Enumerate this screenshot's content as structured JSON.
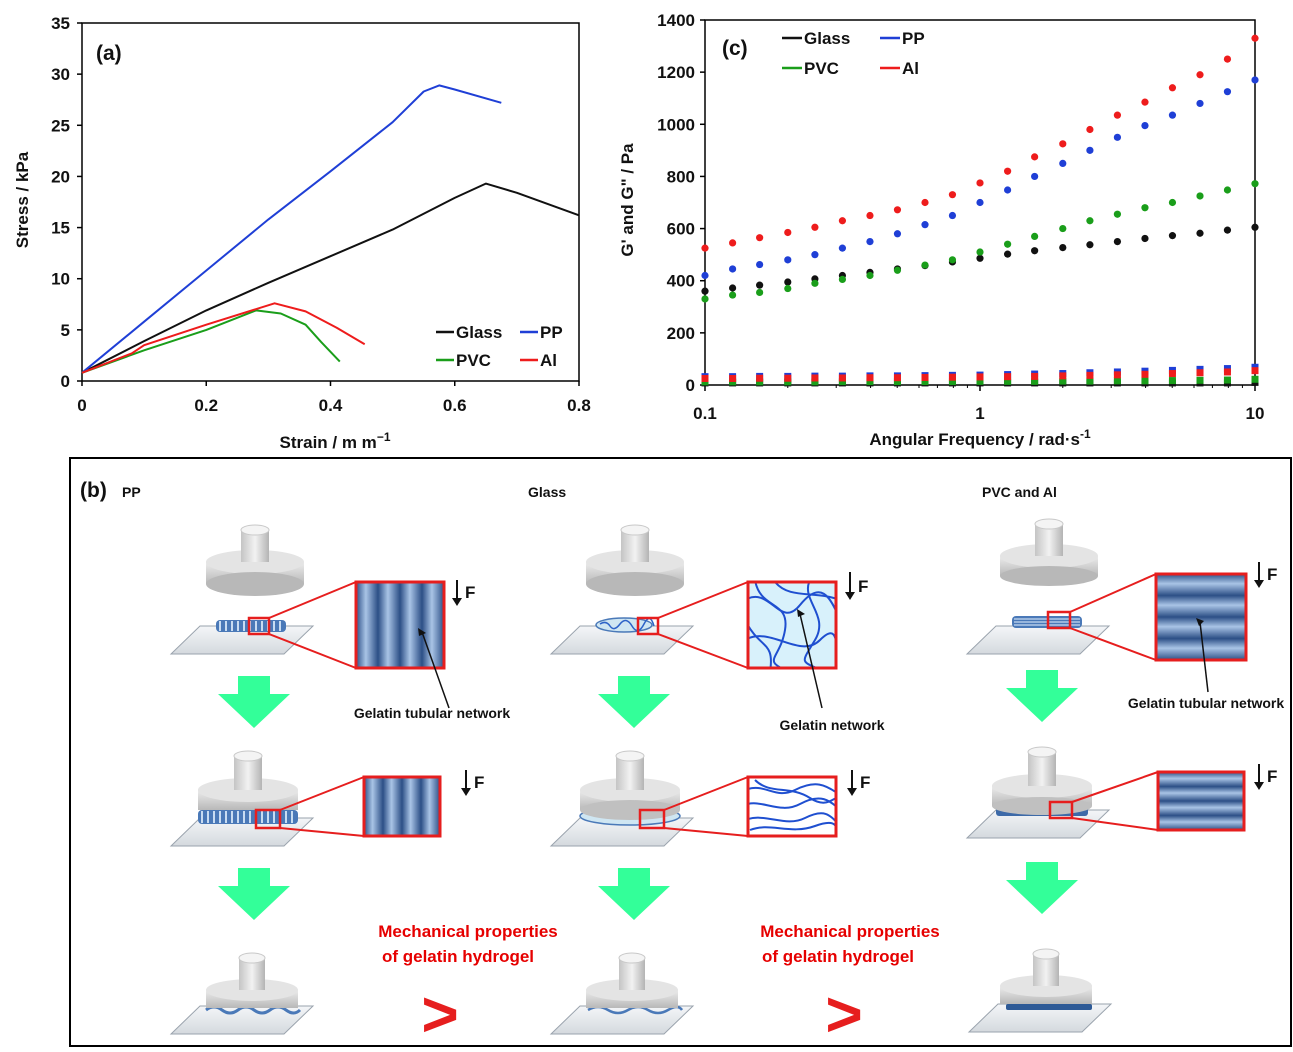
{
  "panel_a": {
    "label": "(a)",
    "xlabel": "Strain / m m",
    "xlabel_sup": "−1",
    "ylabel": "Stress / kPa",
    "xticks": [
      "0",
      "0.2",
      "0.4",
      "0.6",
      "0.8"
    ],
    "yticks": [
      "0",
      "5",
      "10",
      "15",
      "20",
      "25",
      "30",
      "35"
    ],
    "legend": [
      "Glass",
      "PP",
      "PVC",
      "Al"
    ]
  },
  "panel_c": {
    "label": "(c)",
    "xlabel": "Angular Frequency / rad",
    "xlabel_dot": "·",
    "xlabel_s": "s",
    "xlabel_sup": "-1",
    "ylabel": "G' and G\" / Pa",
    "xticks": [
      "0.1",
      "1",
      "10"
    ],
    "yticks": [
      "0",
      "200",
      "400",
      "600",
      "800",
      "1000",
      "1200",
      "1400"
    ],
    "legend": [
      "Glass",
      "PP",
      "PVC",
      "Al"
    ]
  },
  "panel_b": {
    "label": "(b)",
    "col_titles": [
      "PP",
      "Glass",
      "PVC and Al"
    ],
    "force_label": "F",
    "network_labels": [
      "Gelatin tubular network",
      "Gelatin network",
      "Gelatin tubular network"
    ],
    "mech_line1": "Mechanical properties",
    "mech_line2": "of gelatin hydrogel",
    "gt_symbol": ">"
  },
  "colors": {
    "Glass": "#111111",
    "PP": "#1f3fd6",
    "PVC": "#1a9e1a",
    "Al": "#ee1c1c",
    "arrow": "#33ff99",
    "frame": "#e61e1e"
  },
  "chart_data": [
    {
      "type": "line",
      "title": "",
      "xlabel": "Strain / m m−1",
      "ylabel": "Stress / kPa",
      "xlim": [
        0,
        0.8
      ],
      "ylim": [
        0,
        35
      ],
      "series": [
        {
          "name": "Glass",
          "x": [
            0,
            0.1,
            0.2,
            0.3,
            0.4,
            0.5,
            0.6,
            0.65,
            0.7,
            0.8
          ],
          "y": [
            0.8,
            3.9,
            6.9,
            9.6,
            12.2,
            14.8,
            17.9,
            19.3,
            18.4,
            16.2
          ]
        },
        {
          "name": "PP",
          "x": [
            0,
            0.1,
            0.2,
            0.3,
            0.4,
            0.5,
            0.55,
            0.575,
            0.6,
            0.675
          ],
          "y": [
            0.8,
            5.8,
            10.8,
            15.8,
            20.5,
            25.3,
            28.3,
            28.9,
            28.5,
            27.2
          ]
        },
        {
          "name": "PVC",
          "x": [
            0,
            0.1,
            0.2,
            0.28,
            0.32,
            0.36,
            0.385,
            0.415
          ],
          "y": [
            0.8,
            3.0,
            5.0,
            6.9,
            6.6,
            5.5,
            3.8,
            1.9
          ]
        },
        {
          "name": "Al",
          "x": [
            0,
            0.08,
            0.1,
            0.2,
            0.31,
            0.36,
            0.41,
            0.455
          ],
          "y": [
            0.8,
            2.7,
            3.5,
            5.5,
            7.6,
            6.8,
            5.2,
            3.6
          ]
        }
      ]
    },
    {
      "type": "scatter",
      "title": "",
      "xlabel": "Angular Frequency / rad·s-1",
      "ylabel": "G' and G\" / Pa",
      "xscale": "log",
      "xlim": [
        0.1,
        10
      ],
      "ylim": [
        0,
        1400
      ],
      "x": [
        0.1,
        0.126,
        0.158,
        0.2,
        0.251,
        0.316,
        0.398,
        0.501,
        0.631,
        0.794,
        1.0,
        1.26,
        1.58,
        2.0,
        2.51,
        3.16,
        3.98,
        5.01,
        6.31,
        7.94,
        10.0
      ],
      "series": [
        {
          "name": "Glass",
          "values": [
            360,
            372,
            383,
            395,
            407,
            420,
            432,
            445,
            458,
            472,
            486,
            502,
            515,
            527,
            538,
            550,
            562,
            573,
            582,
            594,
            605
          ]
        },
        {
          "name": "PP",
          "values": [
            420,
            445,
            462,
            480,
            500,
            525,
            550,
            580,
            615,
            650,
            700,
            748,
            800,
            850,
            900,
            950,
            995,
            1035,
            1080,
            1125,
            1170
          ]
        },
        {
          "name": "PVC",
          "values": [
            330,
            345,
            355,
            370,
            390,
            405,
            420,
            440,
            460,
            480,
            510,
            540,
            570,
            600,
            630,
            655,
            680,
            700,
            725,
            748,
            772
          ]
        },
        {
          "name": "Al",
          "values": [
            525,
            545,
            565,
            585,
            605,
            630,
            650,
            672,
            700,
            730,
            775,
            820,
            875,
            925,
            980,
            1035,
            1085,
            1140,
            1190,
            1250,
            1330
          ]
        },
        {
          "name": "Glass",
          "values": [
            8,
            8,
            8,
            8,
            8,
            8,
            8,
            8,
            8,
            8,
            8,
            8,
            8,
            8,
            8,
            8,
            8,
            8,
            8,
            8,
            10
          ]
        },
        {
          "name": "PP",
          "values": [
            32,
            32,
            33,
            33,
            34,
            34,
            35,
            35,
            36,
            37,
            38,
            40,
            42,
            44,
            47,
            50,
            53,
            56,
            60,
            63,
            68
          ]
        },
        {
          "name": "PVC",
          "values": [
            12,
            12,
            12,
            12,
            12,
            13,
            13,
            13,
            13,
            13,
            14,
            14,
            14,
            15,
            15,
            16,
            16,
            17,
            18,
            19,
            22
          ]
        },
        {
          "name": "Al",
          "values": [
            25,
            25,
            26,
            26,
            27,
            27,
            28,
            28,
            29,
            30,
            31,
            32,
            33,
            35,
            37,
            39,
            41,
            44,
            47,
            50,
            55
          ]
        }
      ]
    }
  ]
}
